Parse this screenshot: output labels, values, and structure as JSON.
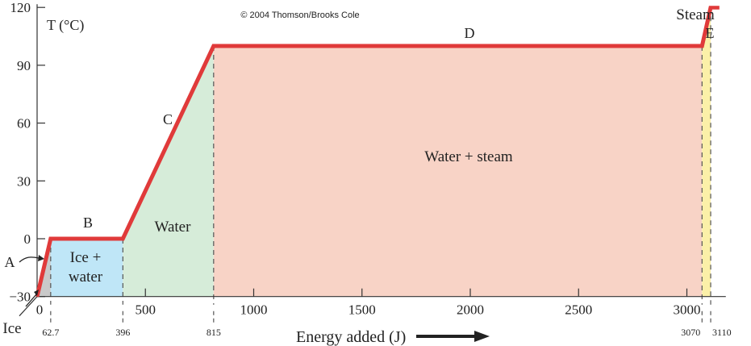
{
  "copyright": "© 2004 Thomson/Brooks Cole",
  "colors": {
    "curve": "#e03a3a",
    "ice": "#c9c9c9",
    "ice_water": "#bfe6f7",
    "water": "#d6ecd9",
    "water_steam": "#f8d3c6",
    "steam": "#fbf0a8",
    "axis": "#333333",
    "text": "#222222"
  },
  "chart_data": {
    "type": "line",
    "title": "",
    "ylabel": "T (°C)",
    "xlabel": "Energy added (J)",
    "xlim": [
      0,
      3150
    ],
    "ylim": [
      -30,
      120
    ],
    "grid": false,
    "legend": "none",
    "x_ticks": [
      {
        "value": 0,
        "label": "0"
      },
      {
        "value": 500,
        "label": "500"
      },
      {
        "value": 1000,
        "label": "1000"
      },
      {
        "value": 1500,
        "label": "1500"
      },
      {
        "value": 2000,
        "label": "2000"
      },
      {
        "value": 2500,
        "label": "2500"
      },
      {
        "value": 3000,
        "label": "3000"
      }
    ],
    "y_ticks": [
      {
        "value": -30,
        "label": "−30"
      },
      {
        "value": 0,
        "label": "0"
      },
      {
        "value": 30,
        "label": "30"
      },
      {
        "value": 60,
        "label": "60"
      },
      {
        "value": 90,
        "label": "90"
      },
      {
        "value": 120,
        "label": "120"
      }
    ],
    "transition_marks": [
      {
        "value": 62.7,
        "label": "62.7"
      },
      {
        "value": 396,
        "label": "396"
      },
      {
        "value": 815,
        "label": "815"
      },
      {
        "value": 3070,
        "label": "3070"
      },
      {
        "value": 3110,
        "label": "3110"
      }
    ],
    "series": [
      {
        "x": [
          0,
          62.7,
          396,
          815,
          3070,
          3110,
          3150
        ],
        "y": [
          -30,
          0,
          0,
          100,
          100,
          120,
          120
        ]
      }
    ],
    "regions": [
      {
        "key": "ice",
        "x0": 0,
        "x1": 62.7
      },
      {
        "key": "ice_water",
        "x0": 62.7,
        "x1": 396
      },
      {
        "key": "water",
        "x0": 396,
        "x1": 815
      },
      {
        "key": "water_steam",
        "x0": 815,
        "x1": 3070
      },
      {
        "key": "steam",
        "x0": 3070,
        "x1": 3110
      }
    ],
    "segment_labels": [
      "A",
      "B",
      "C",
      "D",
      "E"
    ],
    "region_labels": {
      "ice": "Ice",
      "ice_water_line1": "Ice +",
      "ice_water_line2": "water",
      "water": "Water",
      "water_steam": "Water + steam",
      "steam": "Steam"
    }
  }
}
